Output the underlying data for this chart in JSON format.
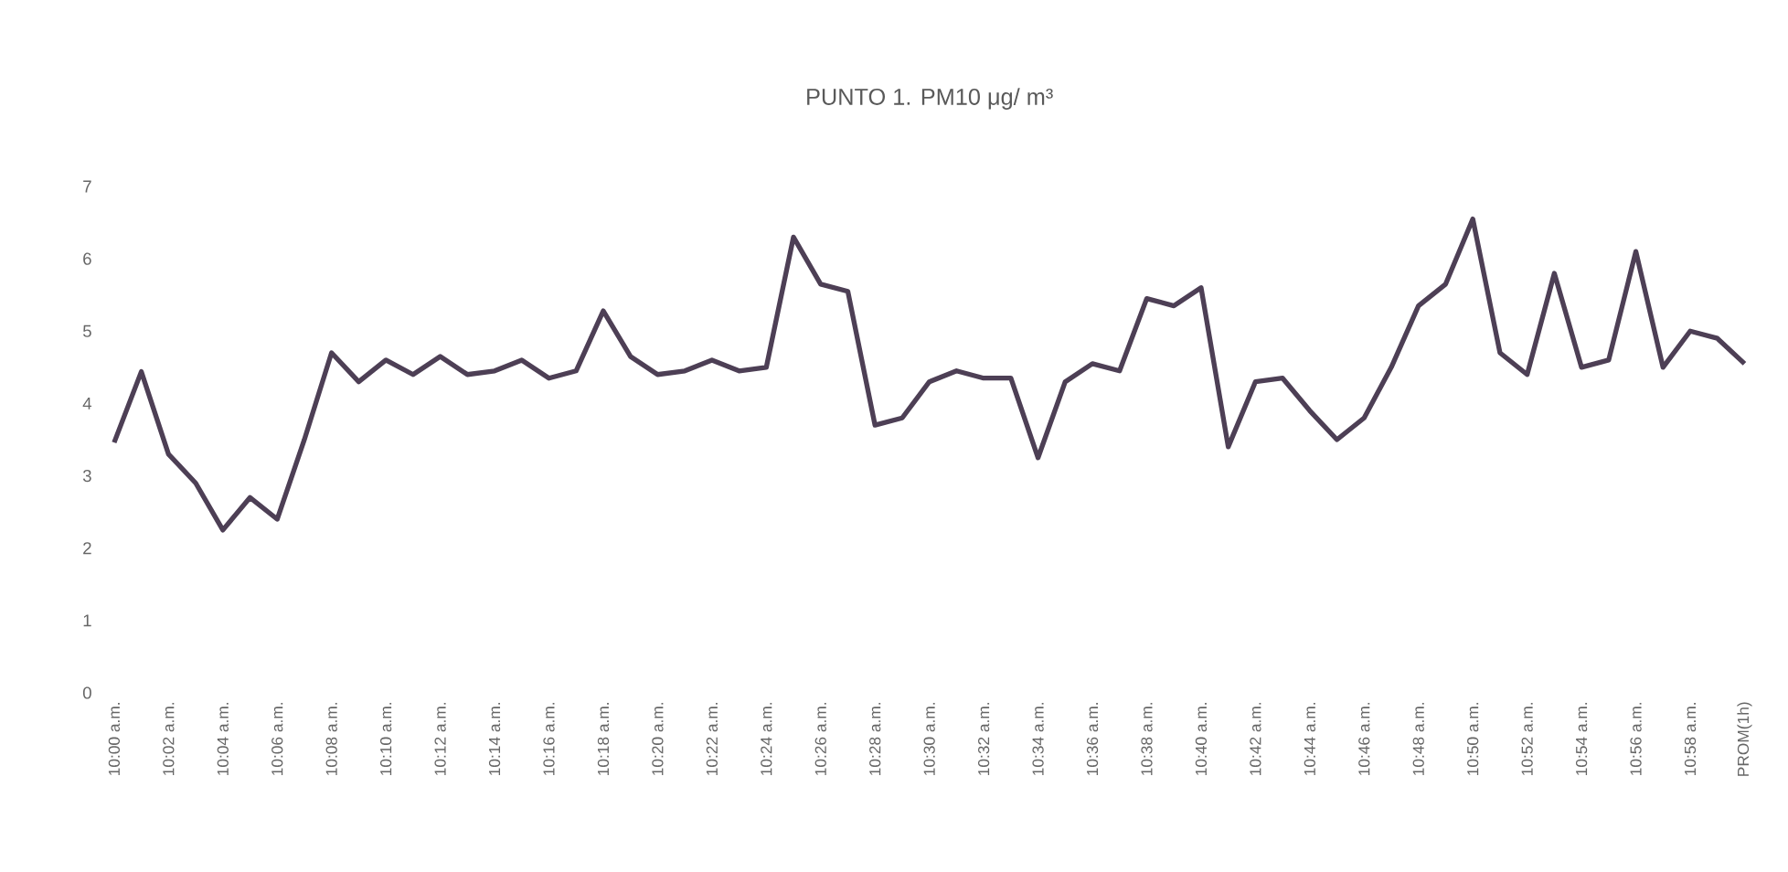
{
  "chart_data": {
    "type": "line",
    "title": "PUNTO 1.  PM10 μg/ m³",
    "categories": [
      "10:00 a.m.",
      null,
      "10:02 a.m.",
      null,
      "10:04 a.m.",
      null,
      "10:06 a.m.",
      null,
      "10:08 a.m.",
      null,
      "10:10 a.m.",
      null,
      "10:12 a.m.",
      null,
      "10:14 a.m.",
      null,
      "10:16 a.m.",
      null,
      "10:18 a.m.",
      null,
      "10:20 a.m.",
      null,
      "10:22 a.m.",
      null,
      "10:24 a.m.",
      null,
      "10:26 a.m.",
      null,
      "10:28 a.m.",
      null,
      "10:30 a.m.",
      null,
      "10:32 a.m.",
      null,
      "10:34 a.m.",
      null,
      "10:36 a.m.",
      null,
      "10:38 a.m.",
      null,
      "10:40 a.m.",
      null,
      "10:42 a.m.",
      null,
      "10:44 a.m.",
      null,
      "10:46 a.m.",
      null,
      "10:48 a.m.",
      null,
      "10:50 a.m.",
      null,
      "10:52 a.m.",
      null,
      "10:54 a.m.",
      null,
      "10:56 a.m.",
      null,
      "10:58 a.m.",
      null,
      "PROM(1h)"
    ],
    "series": [
      {
        "color": "#4d3f55",
        "values": [
          3.46,
          4.44,
          3.3,
          2.9,
          2.25,
          2.7,
          2.4,
          3.5,
          4.7,
          4.3,
          4.6,
          4.4,
          4.65,
          4.4,
          4.45,
          4.6,
          4.35,
          4.45,
          5.28,
          4.65,
          4.4,
          4.45,
          4.6,
          4.45,
          4.5,
          6.3,
          5.65,
          5.55,
          3.7,
          3.8,
          4.3,
          4.45,
          4.35,
          4.35,
          3.25,
          4.3,
          4.55,
          4.45,
          5.45,
          5.35,
          5.6,
          3.4,
          4.3,
          4.35,
          3.9,
          3.5,
          3.8,
          4.5,
          5.35,
          5.65,
          6.55,
          4.7,
          4.4,
          5.8,
          4.5,
          4.6,
          6.1,
          4.5,
          5.0,
          4.9,
          4.55
        ]
      }
    ],
    "ylim": [
      0,
      7
    ],
    "yticks": [
      0,
      1,
      2,
      3,
      4,
      5,
      6,
      7
    ],
    "grid": false,
    "marker": "none",
    "line_style": "solid"
  }
}
